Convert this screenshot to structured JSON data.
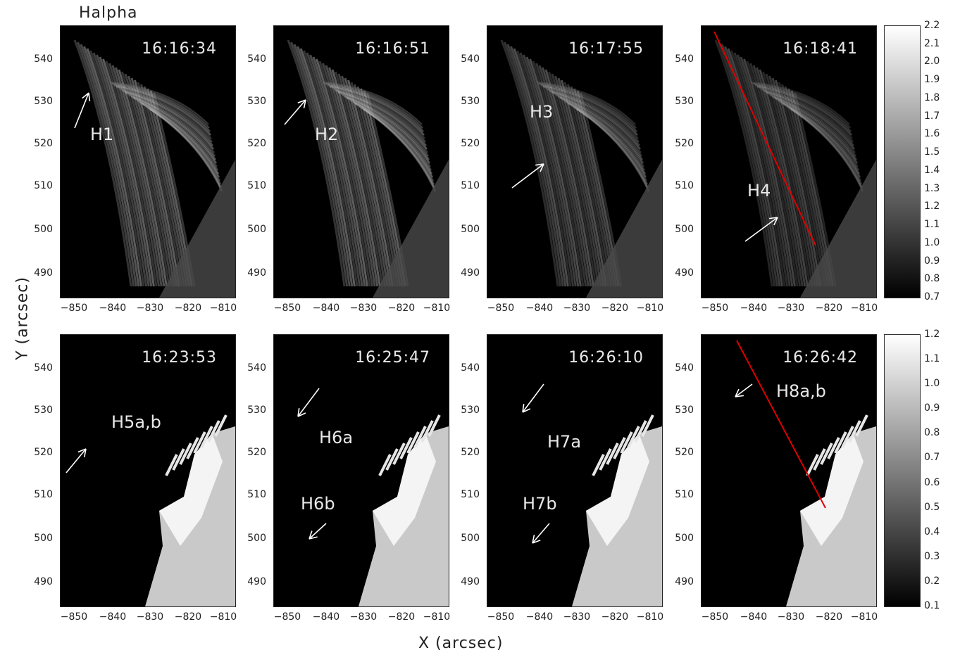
{
  "figure": {
    "corner_label": "Halpha",
    "ylabel": "Y (arcsec)",
    "xlabel": "X (arcsec)"
  },
  "axes": {
    "x_ticks": [
      "−850",
      "−840",
      "−830",
      "−820",
      "−810"
    ],
    "y_ticks": [
      "540",
      "530",
      "520",
      "510",
      "500",
      "490"
    ]
  },
  "colorbars": [
    {
      "ticks": [
        "2.2",
        "2.1",
        "2.0",
        "1.9",
        "1.8",
        "1.7",
        "1.6",
        "1.5",
        "1.4",
        "1.3",
        "1.2",
        "1.1",
        "1.0",
        "0.9",
        "0.8",
        "0.7"
      ]
    },
    {
      "ticks": [
        "1.2",
        "1.1",
        "1.0",
        "0.9",
        "0.8",
        "0.7",
        "0.6",
        "0.5",
        "0.4",
        "0.3",
        "0.2",
        "0.1"
      ]
    }
  ],
  "panels": [
    {
      "time": "16:16:34",
      "labels": [
        "H1"
      ]
    },
    {
      "time": "16:16:51",
      "labels": [
        "H2"
      ]
    },
    {
      "time": "16:17:55",
      "labels": [
        "H3"
      ]
    },
    {
      "time": "16:18:41",
      "labels": [
        "H4"
      ]
    },
    {
      "time": "16:23:53",
      "labels": [
        "H5a,b"
      ]
    },
    {
      "time": "16:25:47",
      "labels": [
        "H6a",
        "H6b"
      ]
    },
    {
      "time": "16:26:10",
      "labels": [
        "H7a",
        "H7b"
      ]
    },
    {
      "time": "16:26:42",
      "labels": [
        "H8a,b"
      ]
    }
  ],
  "colors": {
    "guide_line": "#e00000",
    "arrow": "#ffffff",
    "background": "#000000"
  }
}
